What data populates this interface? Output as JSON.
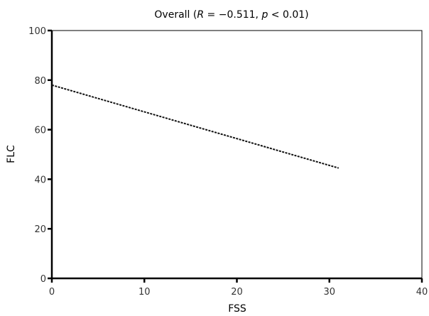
{
  "chart_data": {
    "type": "line",
    "title_prefix": "Overall (",
    "title_r_symbol": "R",
    "title_r_value": " = −0.511, ",
    "title_p_symbol": "p",
    "title_p_value": " < 0.01)",
    "xlabel": "FSS",
    "ylabel": "FLC",
    "xlim": [
      0,
      40
    ],
    "ylim": [
      0,
      100
    ],
    "xticks": [
      0,
      10,
      20,
      30,
      40
    ],
    "yticks": [
      0,
      20,
      40,
      60,
      80,
      100
    ],
    "grid": false,
    "series": [
      {
        "x": [
          0,
          31
        ],
        "y": [
          78,
          44.5
        ],
        "color": "#111111"
      }
    ]
  }
}
